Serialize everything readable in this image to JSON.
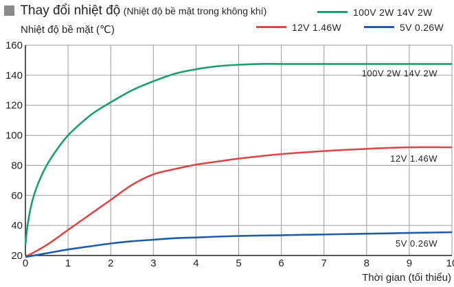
{
  "chart_data": {
    "type": "line",
    "title": "Thay đổi nhiệt độ",
    "subtitle": "(Nhiệt độ bề mặt trong không khí)",
    "ylabel": "Nhiệt độ bề mặt (℃)",
    "xlabel": "Thời gian (tối thiểu)",
    "xlim": [
      0,
      10
    ],
    "ylim": [
      20,
      160
    ],
    "xticks": [
      0,
      1,
      2,
      3,
      4,
      5,
      6,
      7,
      8,
      9,
      10
    ],
    "yticks": [
      20,
      40,
      60,
      80,
      100,
      120,
      140,
      160
    ],
    "grid": true,
    "legend_position": "top-right",
    "series": [
      {
        "name": "100V 2W  14V 2W",
        "annotation": "100V 2W  14V 2W",
        "color": "#1a9e6a",
        "x": [
          0,
          0.05,
          0.15,
          0.3,
          0.5,
          0.75,
          1,
          1.3,
          1.6,
          2,
          2.5,
          3,
          3.5,
          4,
          4.5,
          5,
          5.5,
          6,
          7,
          8,
          9,
          10
        ],
        "y": [
          27,
          40,
          55,
          68,
          80,
          91,
          100,
          108,
          115,
          122,
          130,
          136,
          141,
          144,
          146,
          147,
          147.5,
          147.5,
          147.5,
          147.5,
          147.5,
          147.5
        ]
      },
      {
        "name": "12V 1.46W",
        "annotation": "12V 1.46W",
        "color": "#d94848",
        "x": [
          0,
          0.5,
          1,
          1.5,
          2,
          2.5,
          3,
          3.5,
          4,
          4.5,
          5,
          6,
          7,
          8,
          9,
          10
        ],
        "y": [
          19,
          27,
          37,
          47,
          57,
          67,
          74,
          77.5,
          80.5,
          82.5,
          84.5,
          87.5,
          89.5,
          91,
          92,
          92
        ]
      },
      {
        "name": "5V 0.26W",
        "annotation": "5V 0.26W",
        "color": "#1f5ba8",
        "x": [
          0,
          0.5,
          1,
          1.5,
          2,
          2.5,
          3,
          3.5,
          4,
          5,
          6,
          7,
          8,
          9,
          10
        ],
        "y": [
          19,
          21.5,
          24,
          26,
          28,
          29.5,
          30.5,
          31.5,
          32,
          33,
          33.5,
          34,
          34.5,
          35,
          35.5
        ]
      }
    ]
  }
}
